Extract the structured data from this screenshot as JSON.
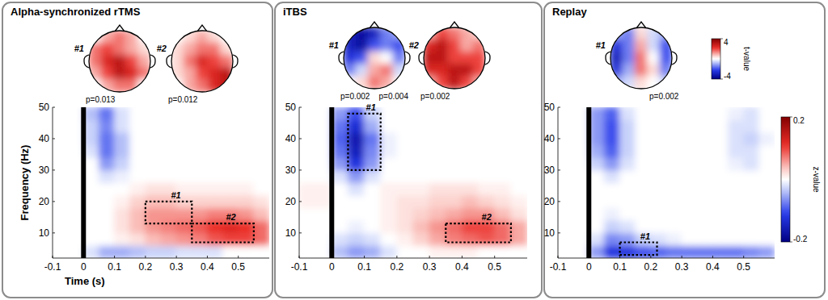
{
  "chart_data": [
    {
      "type": "heatmap",
      "title": "Alpha-synchronized rTMS",
      "xlabel": "Time (s)",
      "ylabel": "Frequency (Hz)",
      "x": [
        -0.075,
        -0.025,
        0.025,
        0.075,
        0.125,
        0.175,
        0.225,
        0.275,
        0.325,
        0.375,
        0.425,
        0.475,
        0.525,
        0.575
      ],
      "y": [
        4,
        8,
        12,
        16,
        20,
        24,
        28,
        32,
        36,
        40,
        44,
        48
      ],
      "values": [
        [
          0,
          0,
          -0.02,
          -0.05,
          -0.05,
          -0.04,
          -0.03,
          -0.03,
          -0.02,
          -0.02,
          -0.02,
          0,
          0,
          0
        ],
        [
          0,
          0,
          0,
          0,
          0.01,
          0.02,
          0.04,
          0.05,
          0.06,
          0.07,
          0.09,
          0.1,
          0.1,
          0.08
        ],
        [
          0,
          0,
          0,
          0,
          0.02,
          0.04,
          0.06,
          0.07,
          0.08,
          0.09,
          0.11,
          0.12,
          0.11,
          0.08
        ],
        [
          0,
          0,
          0,
          0,
          0.02,
          0.04,
          0.06,
          0.06,
          0.06,
          0.06,
          0.07,
          0.07,
          0.06,
          0.04
        ],
        [
          0,
          0,
          0,
          0,
          0.01,
          0.03,
          0.04,
          0.04,
          0.03,
          0.03,
          0.03,
          0.03,
          0.03,
          0.02
        ],
        [
          0,
          0,
          0,
          0,
          0,
          0.01,
          0.02,
          0.02,
          0.01,
          0.01,
          0.01,
          0.01,
          0.01,
          0
        ],
        [
          0,
          0,
          0,
          -0.02,
          -0.01,
          0,
          0,
          0,
          0,
          0,
          0,
          0,
          0,
          0
        ],
        [
          0,
          0,
          0,
          -0.06,
          -0.03,
          0,
          0,
          0,
          0,
          0,
          0,
          0,
          0,
          0
        ],
        [
          0,
          0,
          -0.02,
          -0.08,
          -0.04,
          0,
          0,
          0,
          0,
          0,
          0,
          0,
          0,
          0
        ],
        [
          0,
          0,
          -0.03,
          -0.08,
          -0.04,
          0,
          0,
          0,
          0,
          0,
          0,
          0,
          0,
          0
        ],
        [
          0,
          0,
          -0.03,
          -0.07,
          -0.02,
          0,
          0,
          0,
          0,
          0,
          0,
          0,
          0,
          0
        ],
        [
          0,
          0,
          -0.04,
          -0.08,
          -0.02,
          0,
          0,
          0,
          0,
          0,
          0,
          0,
          0,
          0
        ]
      ],
      "xlim": [
        -0.1,
        0.6
      ],
      "ylim": [
        2,
        50
      ],
      "xticks": [
        -0.1,
        0,
        0.1,
        0.2,
        0.3,
        0.4,
        0.5
      ],
      "yticks": [
        10,
        20,
        30,
        40,
        50
      ],
      "stimulus_time": 0,
      "windows": [
        {
          "label": "#1",
          "t": [
            0.2,
            0.35
          ],
          "f": [
            13,
            20
          ]
        },
        {
          "label": "#2",
          "t": [
            0.35,
            0.55
          ],
          "f": [
            7,
            13
          ]
        }
      ],
      "topoplots": [
        {
          "label": "#1",
          "p_values": [
            "p=0.013"
          ],
          "values": [
            [
              0,
              1,
              1.5,
              1,
              0
            ],
            [
              1.5,
              2,
              1.5,
              1,
              0.5
            ],
            [
              1.5,
              2.5,
              3,
              2,
              1
            ],
            [
              1,
              2,
              3,
              2.5,
              1.5
            ],
            [
              0,
              1,
              1.5,
              1.5,
              0
            ]
          ]
        },
        {
          "label": "#2",
          "p_values": [
            "p=0.012"
          ],
          "values": [
            [
              0,
              0.5,
              1,
              0.5,
              0
            ],
            [
              0.5,
              1,
              1.5,
              1.5,
              0.5
            ],
            [
              0.5,
              1.5,
              2.5,
              2,
              1.5
            ],
            [
              0.5,
              1,
              2,
              2.5,
              3
            ],
            [
              0,
              1,
              1.5,
              2.5,
              3
            ]
          ]
        }
      ]
    },
    {
      "type": "heatmap",
      "title": "iTBS",
      "x": [
        -0.075,
        -0.025,
        0.025,
        0.075,
        0.125,
        0.175,
        0.225,
        0.275,
        0.325,
        0.375,
        0.425,
        0.475,
        0.525,
        0.575
      ],
      "y": [
        4,
        8,
        12,
        16,
        20,
        24,
        28,
        32,
        36,
        40,
        44,
        48
      ],
      "values": [
        [
          0,
          0,
          -0.04,
          -0.06,
          -0.05,
          -0.02,
          0,
          0,
          0.01,
          0.01,
          0.01,
          0,
          0,
          0
        ],
        [
          0,
          0,
          -0.02,
          -0.03,
          -0.02,
          0,
          0.01,
          0.03,
          0.05,
          0.07,
          0.08,
          0.09,
          0.08,
          0.05
        ],
        [
          0,
          0,
          0,
          -0.01,
          0,
          0.01,
          0.02,
          0.04,
          0.06,
          0.08,
          0.1,
          0.1,
          0.08,
          0.05
        ],
        [
          0,
          0,
          0,
          0,
          0,
          0.01,
          0.02,
          0.03,
          0.04,
          0.05,
          0.06,
          0.06,
          0.04,
          0.02
        ],
        [
          0.01,
          0.01,
          0,
          0,
          0,
          0.01,
          0.02,
          0.02,
          0.03,
          0.03,
          0.04,
          0.03,
          0.02,
          0.01
        ],
        [
          0.01,
          0.01,
          0,
          -0.02,
          0,
          0.01,
          0.01,
          0.01,
          0.02,
          0.02,
          0.02,
          0.01,
          0.01,
          0
        ],
        [
          0,
          0,
          -0.02,
          -0.06,
          -0.02,
          0,
          0,
          0,
          0,
          0,
          0,
          0,
          0,
          0
        ],
        [
          0,
          0,
          -0.06,
          -0.12,
          -0.06,
          0,
          0,
          0,
          0,
          0,
          0,
          0,
          0,
          0
        ],
        [
          0,
          0,
          -0.08,
          -0.15,
          -0.07,
          -0.01,
          0,
          0,
          0,
          0,
          0,
          0,
          0,
          0
        ],
        [
          0,
          0,
          -0.09,
          -0.16,
          -0.08,
          -0.01,
          0,
          0,
          0,
          0,
          0,
          0,
          0,
          0
        ],
        [
          0,
          0,
          -0.08,
          -0.13,
          -0.05,
          0,
          0,
          0,
          0,
          0,
          0,
          0,
          0,
          0
        ],
        [
          0,
          0,
          -0.06,
          -0.1,
          -0.03,
          0,
          0,
          0,
          0,
          0,
          0,
          0,
          0,
          0
        ]
      ],
      "xlim": [
        -0.1,
        0.6
      ],
      "ylim": [
        2,
        50
      ],
      "xticks": [
        -0.1,
        0,
        0.1,
        0.2,
        0.3,
        0.4,
        0.5
      ],
      "yticks": [
        10,
        20,
        30,
        40,
        50
      ],
      "stimulus_time": 0,
      "windows": [
        {
          "label": "#1",
          "t": [
            0.05,
            0.15
          ],
          "f": [
            30,
            48
          ]
        },
        {
          "label": "#2",
          "t": [
            0.35,
            0.55
          ],
          "f": [
            7,
            13
          ]
        }
      ],
      "topoplots": [
        {
          "label": "#1",
          "p_values": [
            "p=0.002",
            "p=0.004"
          ],
          "values": [
            [
              -3,
              -3.5,
              -3,
              -1.5,
              -1
            ],
            [
              -3,
              -3.5,
              -2,
              -1.5,
              -2
            ],
            [
              -2.5,
              -2,
              0.5,
              0,
              -1.5
            ],
            [
              -1.5,
              -0.5,
              1,
              1.5,
              -0.5
            ],
            [
              0,
              0.5,
              1.5,
              1,
              0
            ]
          ]
        },
        {
          "label": "#2",
          "p_values": [
            "p=0.002"
          ],
          "values": [
            [
              1,
              2,
              1.5,
              1,
              0.5
            ],
            [
              2.5,
              3,
              2,
              1,
              1.5
            ],
            [
              3,
              3,
              2,
              2,
              2
            ],
            [
              2.5,
              2.5,
              3,
              3,
              2
            ],
            [
              1,
              2,
              3,
              2,
              1
            ]
          ]
        }
      ]
    },
    {
      "type": "heatmap",
      "title": "Replay",
      "x": [
        -0.075,
        -0.025,
        0.025,
        0.075,
        0.125,
        0.175,
        0.225,
        0.275,
        0.325,
        0.375,
        0.425,
        0.475,
        0.525,
        0.575
      ],
      "y": [
        4,
        8,
        12,
        16,
        20,
        24,
        28,
        32,
        36,
        40,
        44,
        48
      ],
      "values": [
        [
          0,
          0,
          -0.06,
          -0.12,
          -0.12,
          -0.1,
          -0.09,
          -0.08,
          -0.08,
          -0.08,
          -0.08,
          -0.08,
          -0.07,
          -0.06
        ],
        [
          0,
          0,
          -0.02,
          -0.07,
          -0.06,
          -0.03,
          -0.02,
          -0.01,
          0,
          0,
          0,
          0,
          0,
          0
        ],
        [
          0,
          0,
          0,
          -0.03,
          -0.02,
          0,
          0,
          0,
          0,
          0,
          0,
          0,
          0,
          0
        ],
        [
          0,
          0,
          0,
          -0.01,
          0,
          0,
          0,
          0,
          0,
          0,
          0,
          0,
          0,
          0
        ],
        [
          0,
          0,
          0,
          0,
          0,
          0,
          0,
          0,
          0,
          0,
          0,
          0,
          0,
          0
        ],
        [
          0,
          0,
          0,
          0,
          0,
          0,
          0,
          0,
          0,
          0,
          0,
          0,
          0,
          0
        ],
        [
          0,
          0,
          0,
          -0.02,
          0,
          0,
          0,
          0,
          0,
          0,
          0,
          0,
          0,
          0
        ],
        [
          0,
          0,
          -0.03,
          -0.06,
          -0.02,
          0,
          0,
          0,
          0,
          0,
          0,
          -0.01,
          -0.02,
          0
        ],
        [
          0,
          0,
          -0.05,
          -0.09,
          -0.03,
          0,
          0,
          0,
          0,
          0,
          0,
          -0.02,
          -0.02,
          0
        ],
        [
          0,
          0,
          -0.06,
          -0.1,
          -0.03,
          0,
          0,
          0,
          0,
          0,
          0,
          -0.02,
          -0.03,
          -0.01
        ],
        [
          0,
          0,
          -0.06,
          -0.1,
          -0.03,
          0,
          0,
          0,
          0,
          0,
          0,
          -0.02,
          -0.02,
          0
        ],
        [
          0,
          0,
          -0.06,
          -0.09,
          -0.02,
          0,
          0,
          0,
          0,
          0,
          0,
          -0.01,
          -0.02,
          0
        ]
      ],
      "xlim": [
        -0.1,
        0.6
      ],
      "ylim": [
        2,
        50
      ],
      "xticks": [
        -0.1,
        0,
        0.1,
        0.2,
        0.3,
        0.4,
        0.5
      ],
      "yticks": [
        10,
        20,
        30,
        40,
        50
      ],
      "stimulus_time": 0,
      "windows": [
        {
          "label": "#1",
          "t": [
            0.1,
            0.22
          ],
          "f": [
            3,
            7
          ]
        }
      ],
      "topoplots": [
        {
          "label": "#1",
          "p_values": [
            "p=0.002"
          ],
          "values": [
            [
              -1,
              -1.5,
              0.5,
              -0.5,
              -1
            ],
            [
              -2.5,
              -1.5,
              1,
              -0.5,
              -2
            ],
            [
              -3,
              -1.5,
              1.5,
              0,
              -2
            ],
            [
              -2.5,
              -1,
              1.5,
              0.5,
              -1.5
            ],
            [
              -1,
              -0.5,
              0.5,
              0,
              -0.5
            ]
          ]
        }
      ]
    }
  ],
  "z_colorbar": {
    "label": "z-value",
    "range": [
      -0.2,
      0.2
    ],
    "ticks": [
      0.2,
      -0.2
    ]
  },
  "t_colorbar": {
    "label": "t-value",
    "range": [
      -4,
      4
    ],
    "ticks": [
      4,
      -4
    ]
  }
}
